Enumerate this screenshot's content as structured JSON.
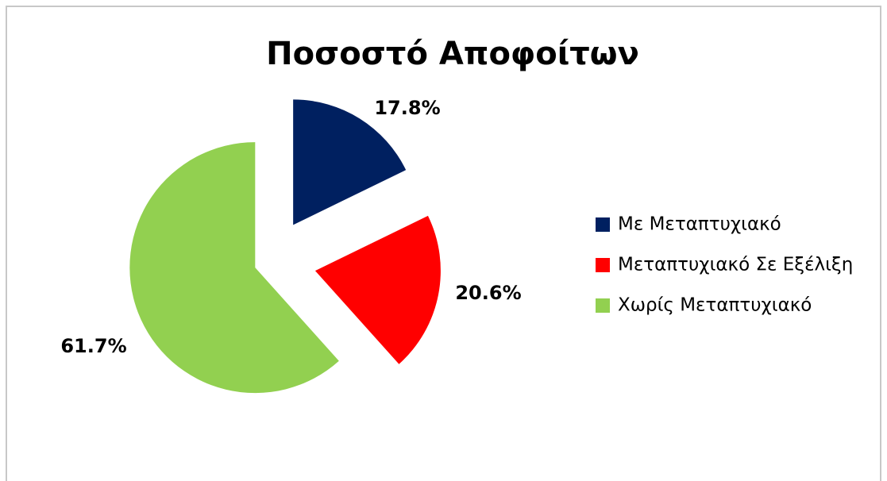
{
  "chart_data": {
    "type": "pie",
    "title": "Ποσοστό Αποφοίτων",
    "categories": [
      "Με Μεταπτυχιακό",
      "Μεταπτυχιακό Σε Εξέλιξη",
      "Χωρίς Μεταπτυχιακό"
    ],
    "values": [
      17.8,
      20.6,
      61.7
    ],
    "value_labels": [
      "17.8%",
      "20.6%",
      "61.7%"
    ],
    "colors": [
      "#002060",
      "#ff0000",
      "#92d050"
    ],
    "legend": "right"
  }
}
